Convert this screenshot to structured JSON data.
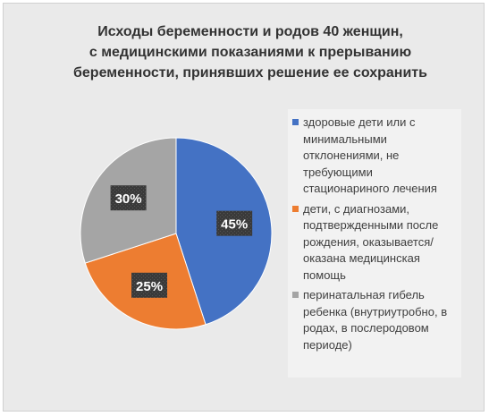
{
  "chart_data": {
    "type": "pie",
    "title_lines": [
      "Исходы беременности и родов 40 женщин,",
      "с медицинскими показаниями к прерыванию",
      "беременности, принявших решение ее сохранить"
    ],
    "slices": [
      {
        "label": "здоровые дети или с минимальными отклонениями, не требующими стационариного лечения",
        "value": 45,
        "display": "45%",
        "color": "#4472c4"
      },
      {
        "label": "дети, с диагнозами, подтвержденными после рождения, оказывается/оказана медицинская помощь",
        "value": 25,
        "display": "25%",
        "color": "#ed7d31"
      },
      {
        "label": "перинатальная гибель ребенка (внутриутробно, в родах, в послеродовом периоде)",
        "value": 30,
        "display": "30%",
        "color": "#a5a5a5"
      }
    ],
    "legend_position": "right"
  }
}
